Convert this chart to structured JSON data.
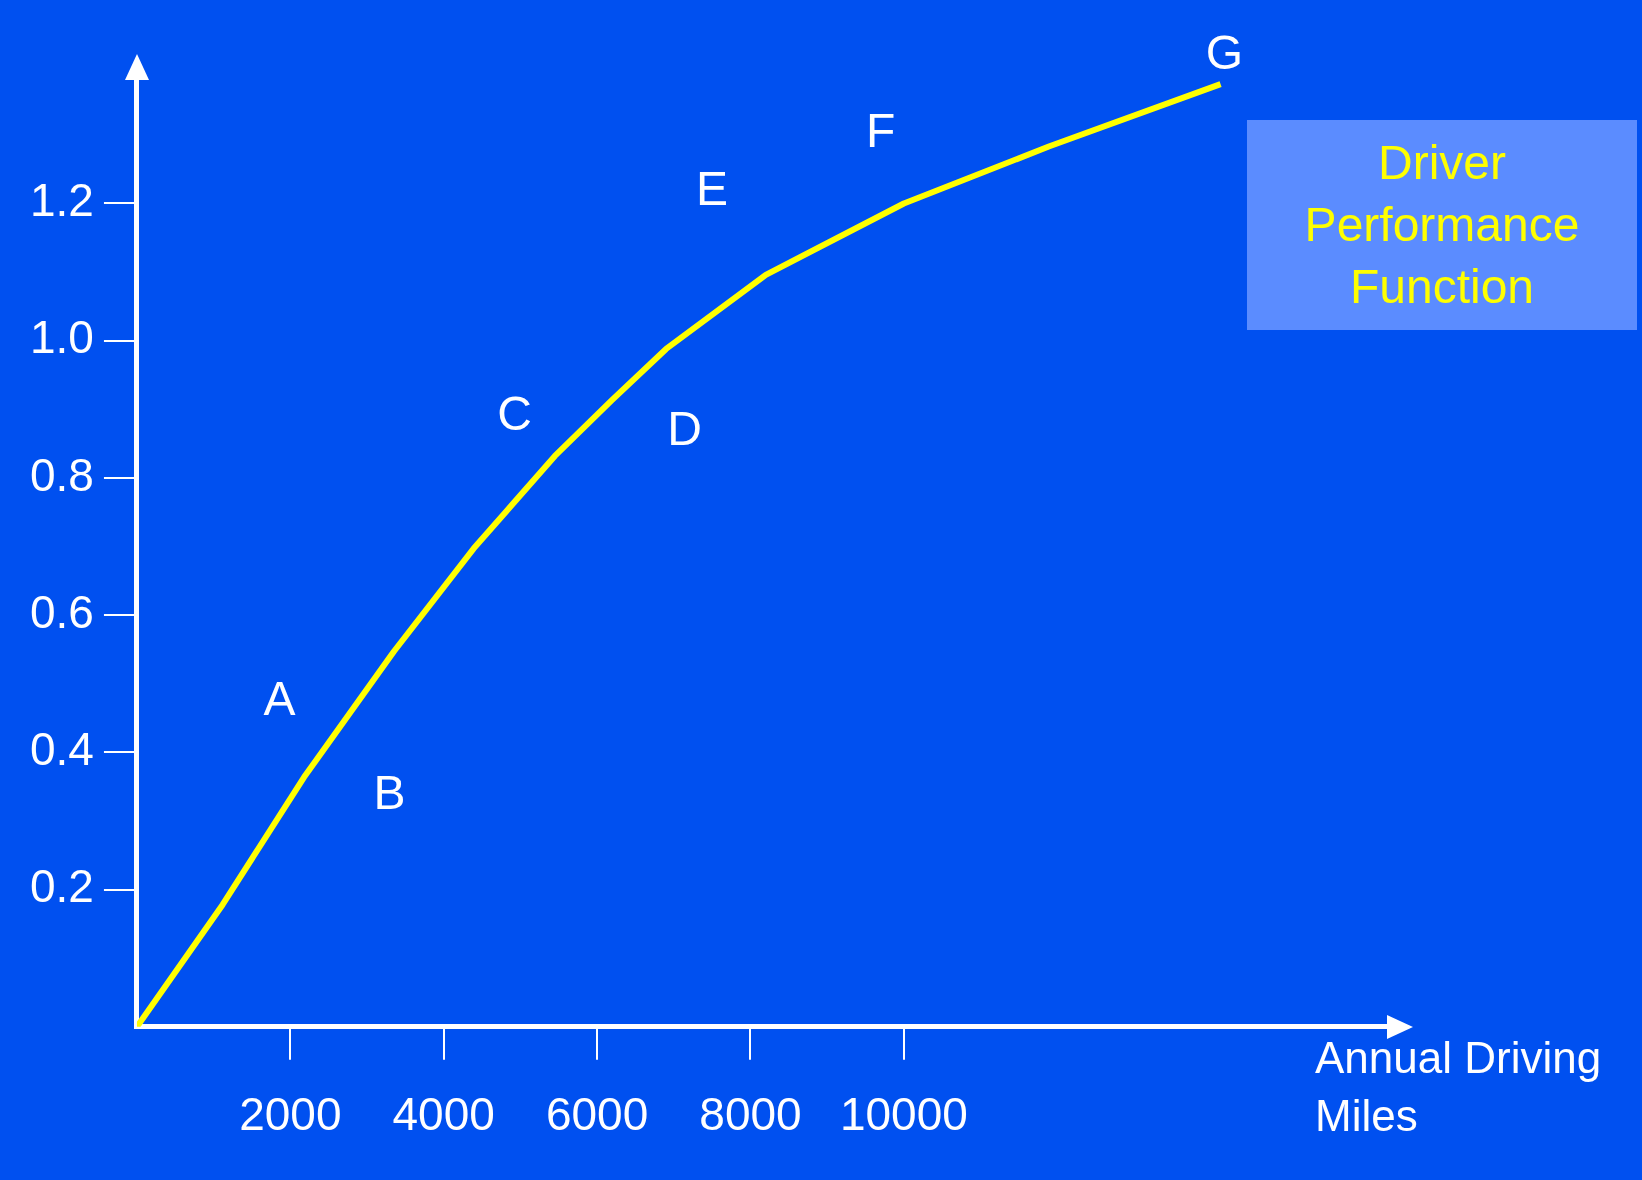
{
  "chart_data": {
    "type": "line",
    "xlabel": "Annual Driving Miles",
    "x": [
      0,
      1117,
      2180,
      3350,
      4390,
      5450,
      6190,
      6900,
      8200,
      10000,
      11890,
      14130
    ],
    "series": [
      {
        "name": "Driver Performance Function",
        "color": "#ffff00",
        "values": [
          0,
          0.178,
          0.364,
          0.547,
          0.697,
          0.832,
          0.913,
          0.988,
          1.096,
          1.2,
          1.283,
          1.374
        ]
      }
    ],
    "xlim": [
      0,
      16300
    ],
    "xticks": [
      2000,
      4000,
      6000,
      8000,
      10000
    ],
    "ylim": [
      0,
      1.38
    ],
    "yticks": [
      0.2,
      0.4,
      0.6,
      0.8,
      {
        "value": 1.0,
        "label": "1.0"
      },
      1.2
    ],
    "grid": false,
    "legend": "top right",
    "marker": "none",
    "annotations": [
      "A",
      "B",
      "C",
      "D",
      "E",
      "F",
      "G"
    ]
  }
}
